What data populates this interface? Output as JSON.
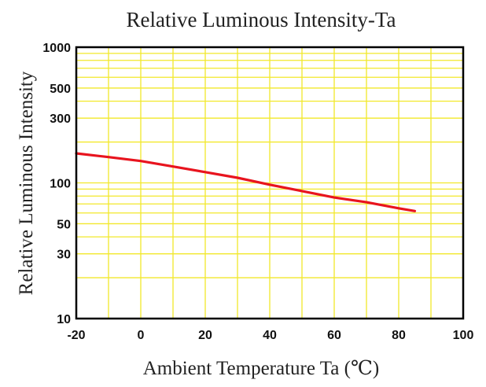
{
  "chart_data": {
    "type": "line",
    "title": "Relative Luminous Intensity-Ta",
    "xlabel": "Ambient Temperature Ta (℃)",
    "ylabel": "Relative Luminous Intensity",
    "xlim": [
      -20,
      100
    ],
    "ylim": [
      10,
      1000
    ],
    "y_scale": "log",
    "grid": true,
    "x_ticks": [
      -20,
      0,
      20,
      40,
      60,
      80,
      100
    ],
    "x_tick_labels": [
      "-20",
      "0",
      "20",
      "40",
      "60",
      "80",
      "100"
    ],
    "x_grid": [
      -20,
      -10,
      0,
      10,
      20,
      30,
      40,
      50,
      60,
      70,
      80,
      90,
      100
    ],
    "y_ticks": [
      10,
      30,
      50,
      100,
      300,
      500,
      1000
    ],
    "y_tick_labels": [
      "10",
      "30",
      "50",
      "100",
      "300",
      "500",
      "1000"
    ],
    "y_grid": [
      10,
      20,
      30,
      40,
      50,
      60,
      70,
      80,
      90,
      100,
      200,
      300,
      400,
      500,
      600,
      700,
      800,
      900,
      1000
    ],
    "series": [
      {
        "color": "#e8141e",
        "x": [
          -20,
          -10,
          0,
          10,
          20,
          30,
          40,
          50,
          60,
          70,
          80,
          85
        ],
        "y": [
          165,
          155,
          145,
          132,
          120,
          109,
          97,
          87,
          78,
          72,
          65,
          62
        ]
      }
    ],
    "colors": {
      "grid": "#f2e82a",
      "axes": "#000000",
      "line": "#e8141e"
    }
  }
}
